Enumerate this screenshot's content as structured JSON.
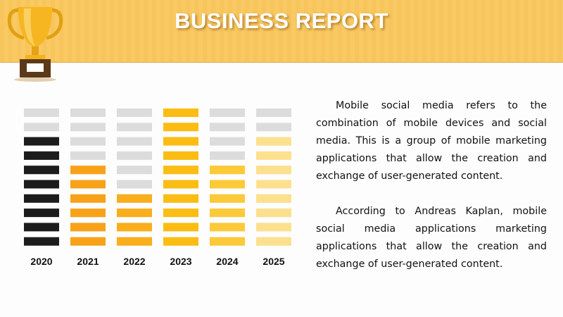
{
  "header": {
    "title": "BUSINESS REPORT"
  },
  "chart_data": {
    "type": "pictorial-bar",
    "categories": [
      "2020",
      "2021",
      "2022",
      "2023",
      "2024",
      "2025"
    ],
    "values": [
      8,
      6,
      4,
      10,
      6,
      8
    ],
    "colors": [
      "#1c1c1c",
      "#f8a21a",
      "#f9ae1c",
      "#fbbd14",
      "#fcca38",
      "#fde08e"
    ],
    "ylim": [
      0,
      10
    ]
  },
  "paragraphs": [
    "Mobile social media refers to the combination of mobile devices and social media. This is a group of mobile marketing applications that allow the creation and exchange of user-generated content.",
    "According to Andreas Kaplan, mobile social media applications marketing applications that allow the creation and exchange of user-generated content."
  ]
}
